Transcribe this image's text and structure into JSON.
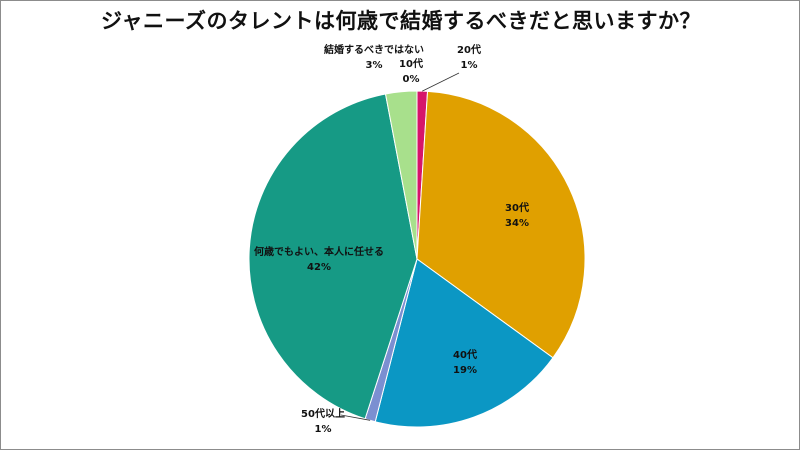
{
  "chart_data": {
    "type": "pie",
    "title": "ジャニーズのタレントは何歳で結婚するべきだと思いますか？",
    "slices": [
      {
        "label": "20代",
        "value": 1,
        "value_label": "1%",
        "color": "#d6156a"
      },
      {
        "label": "30代",
        "value": 34,
        "value_label": "34%",
        "color": "#e0a000"
      },
      {
        "label": "40代",
        "value": 19,
        "value_label": "19%",
        "color": "#0b97c4"
      },
      {
        "label": "50代以上",
        "value": 1,
        "value_label": "1%",
        "color": "#7b8fd1"
      },
      {
        "label": "何歳でもよい、本人に任せる",
        "value": 42,
        "value_label": "42%",
        "color": "#169a85"
      },
      {
        "label": "結婚するべきではない",
        "value": 3,
        "value_label": "3%",
        "color": "#a8e08c"
      },
      {
        "label": "10代",
        "value": 0,
        "value_label": "0%",
        "color": "#c0504d"
      }
    ]
  }
}
